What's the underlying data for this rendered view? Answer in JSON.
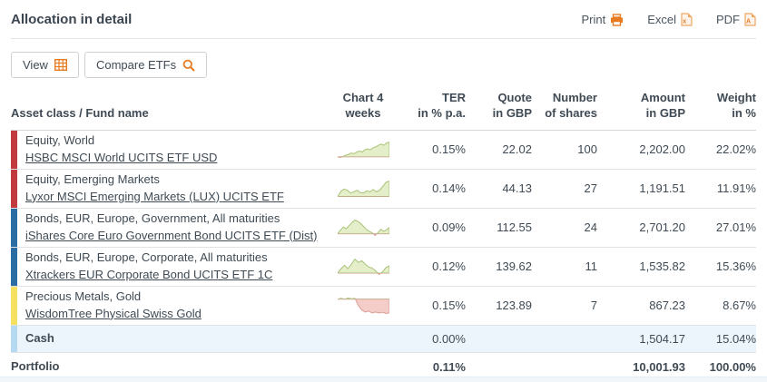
{
  "colors": {
    "accent": "#e87a20",
    "red_bar": "#c13b3e",
    "blue_bar": "#2b6ca3",
    "yellow_bar": "#f5e05f",
    "cash_bar": "#b5d9f0",
    "cash_bg": "#ecf5fb",
    "spark_green_fill": "#e4efca",
    "spark_green_line": "#a9c278",
    "spark_red_fill": "#f4cdc9",
    "spark_red_line": "#dd9d96"
  },
  "header": {
    "title": "Allocation in detail",
    "print_label": "Print",
    "excel_label": "Excel",
    "pdf_label": "PDF"
  },
  "toolbar": {
    "view_label": "View",
    "compare_label": "Compare ETFs"
  },
  "table": {
    "columns": {
      "name": "Asset class / Fund name",
      "chart_l1": "Chart 4",
      "chart_l2": "weeks",
      "ter_l1": "TER",
      "ter_l2": "in % p.a.",
      "quote_l1": "Quote",
      "quote_l2": "in GBP",
      "shares_l1": "Number",
      "shares_l2": "of shares",
      "amount_l1": "Amount",
      "amount_l2": "in GBP",
      "weight_l1": "Weight",
      "weight_l2": "in %"
    },
    "rows": [
      {
        "color": "#c13b3e",
        "asset_class": "Equity, World",
        "fund": "HSBC MSCI World UCITS ETF USD",
        "ter": "0.15%",
        "quote": "22.02",
        "shares": "100",
        "amount": "2,202.00",
        "weight": "22.02%",
        "spark": {
          "trend": "up",
          "points": [
            0,
            -0.3,
            0.2,
            0.8,
            1.2,
            1.8,
            1.5,
            2.4,
            2.8,
            2.4,
            3.4,
            3.8,
            3.4,
            4.4,
            4.8,
            5.6,
            6.2,
            5.6,
            6.8,
            7.2
          ]
        }
      },
      {
        "color": "#c13b3e",
        "asset_class": "Equity, Emerging Markets",
        "fund": "Lyxor MSCI Emerging Markets (LUX) UCITS ETF",
        "ter": "0.14%",
        "quote": "44.13",
        "shares": "27",
        "amount": "1,191.51",
        "weight": "11.91%",
        "spark": {
          "trend": "up",
          "points": [
            0,
            1.8,
            2.6,
            2.2,
            1.2,
            1.6,
            2.2,
            1.4,
            1.2,
            2.0,
            1.6,
            2.4,
            1.6,
            2.2,
            3.6,
            5.0,
            5.4
          ]
        }
      },
      {
        "color": "#2b6ca3",
        "asset_class": "Bonds, EUR, Europe, Government, All maturities",
        "fund": "iShares Core Euro Government Bond UCITS ETF (Dist)",
        "ter": "0.09%",
        "quote": "112.55",
        "shares": "24",
        "amount": "2,701.20",
        "weight": "27.01%",
        "spark": {
          "trend": "up",
          "points": [
            0,
            1.5,
            2.8,
            2.0,
            3.4,
            4.6,
            5.6,
            5.0,
            4.2,
            3.0,
            1.8,
            1.0,
            0.4,
            -0.7,
            0.4,
            1.8,
            1.0,
            1.6,
            2.6
          ]
        }
      },
      {
        "color": "#2b6ca3",
        "asset_class": "Bonds, EUR, Europe, Corporate, All maturities",
        "fund": "Xtrackers EUR Corporate Bond UCITS ETF 1C",
        "ter": "0.12%",
        "quote": "139.62",
        "shares": "11",
        "amount": "1,535.82",
        "weight": "15.36%",
        "spark": {
          "trend": "up",
          "points": [
            0,
            1.6,
            2.8,
            1.6,
            3.2,
            5.0,
            3.8,
            4.4,
            3.2,
            2.2,
            1.8,
            0.8,
            -0.5,
            0.4,
            2.0,
            2.6
          ]
        }
      },
      {
        "color": "#f5e05f",
        "asset_class": "Precious Metals, Gold",
        "fund": "WisdomTree Physical Swiss Gold",
        "ter": "0.15%",
        "quote": "123.89",
        "shares": "7",
        "amount": "867.23",
        "weight": "8.67%",
        "spark": {
          "trend": "down",
          "points": [
            0,
            0.3,
            -0.1,
            0.4,
            0.1,
            0.3,
            -2.6,
            -4.4,
            -5.2,
            -4.8,
            -5.6,
            -5.2,
            -5.6,
            -5.3,
            -5.8,
            -5.5
          ]
        }
      }
    ],
    "cash_row": {
      "label": "Cash",
      "ter": "0.00%",
      "quote": "",
      "shares": "",
      "amount": "1,504.17",
      "weight": "15.04%"
    },
    "total_row": {
      "label": "Portfolio",
      "ter": "0.11%",
      "quote": "",
      "shares": "",
      "amount": "10,001.93",
      "weight": "100.00%"
    }
  }
}
